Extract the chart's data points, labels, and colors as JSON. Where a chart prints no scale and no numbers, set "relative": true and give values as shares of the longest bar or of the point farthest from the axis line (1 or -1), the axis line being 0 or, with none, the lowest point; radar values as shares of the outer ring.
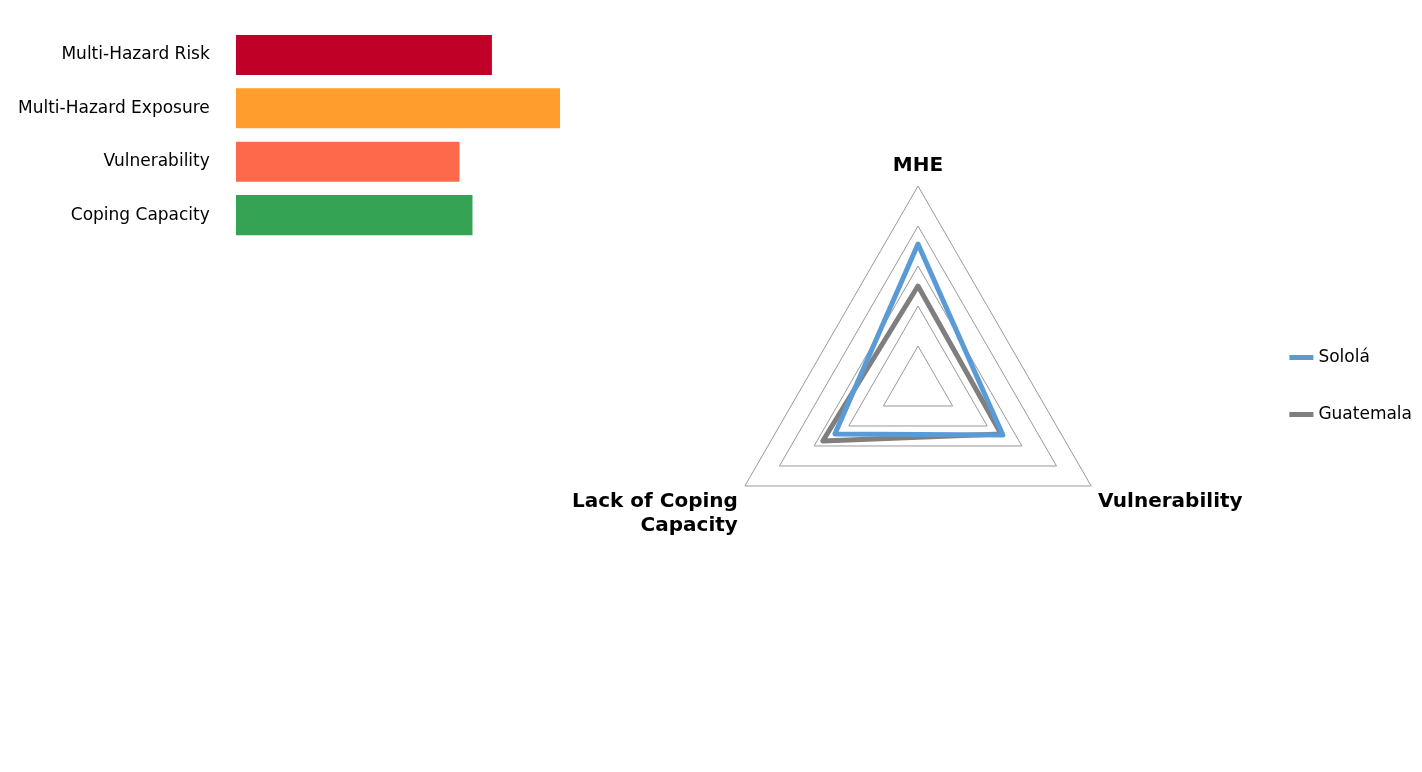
{
  "chart_data": [
    {
      "type": "bar",
      "orientation": "horizontal",
      "relative": true,
      "categories": [
        "Multi-Hazard Risk",
        "Multi-Hazard Exposure",
        "Vulnerability",
        "Coping Capacity"
      ],
      "values": [
        0.79,
        1,
        0.69,
        0.73
      ],
      "colors": [
        "#c00027",
        "#ff9e2c",
        "#fd6a4b",
        "#34a454"
      ],
      "legend": false,
      "grid": false
    },
    {
      "type": "radar",
      "relative": true,
      "categories": [
        "MHE",
        "Vulnerability",
        "Lack of Coping Capacity"
      ],
      "series": [
        {
          "name": "Sololá",
          "color": "#5b9bd5",
          "values": [
            0.71,
            0.49,
            0.48
          ]
        },
        {
          "name": "Guatemala",
          "color": "#7f7f7f",
          "values": [
            0.5,
            0.48,
            0.55
          ]
        }
      ],
      "grid": true,
      "legend": "right",
      "marker": "none"
    }
  ]
}
